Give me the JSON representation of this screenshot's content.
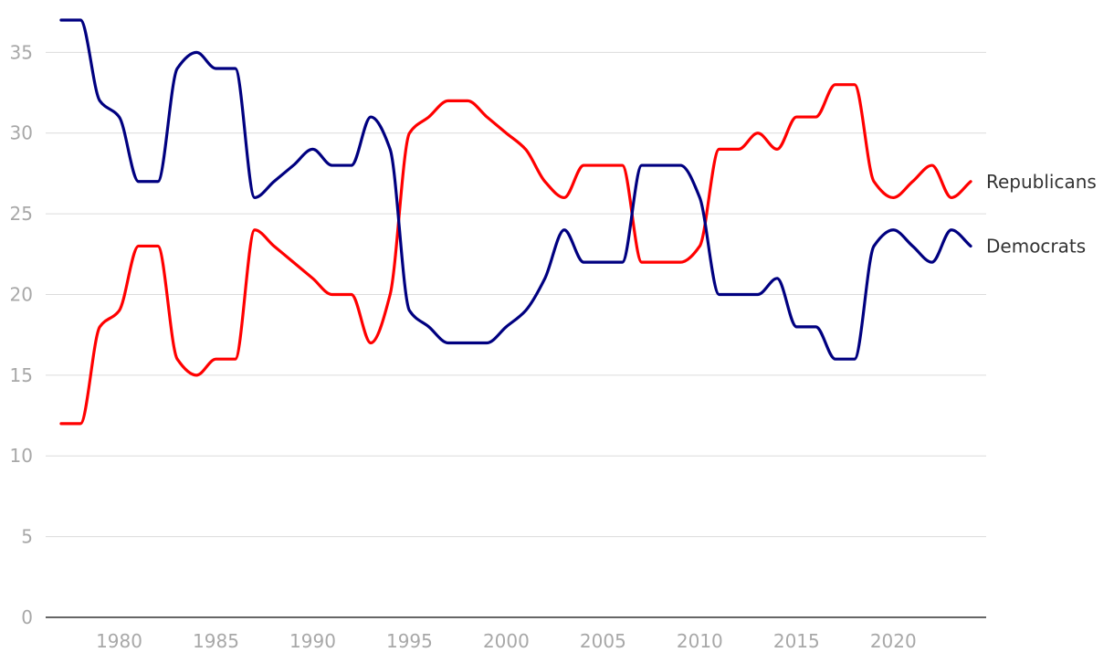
{
  "chart_data": {
    "type": "line",
    "title": "",
    "xlabel": "",
    "ylabel": "",
    "xlim": [
      1977,
      2024
    ],
    "ylim": [
      0,
      37
    ],
    "y_ticks": [
      0,
      5,
      10,
      15,
      20,
      25,
      30,
      35
    ],
    "x_ticks": [
      1980,
      1985,
      1990,
      1995,
      2000,
      2005,
      2010,
      2015,
      2020
    ],
    "grid": true,
    "legend": "end-of-line labels",
    "x": [
      1977,
      1978,
      1979,
      1980,
      1981,
      1982,
      1983,
      1984,
      1985,
      1986,
      1987,
      1988,
      1989,
      1990,
      1991,
      1992,
      1993,
      1994,
      1995,
      1996,
      1997,
      1998,
      1999,
      2000,
      2001,
      2002,
      2003,
      2004,
      2005,
      2006,
      2007,
      2008,
      2009,
      2010,
      2011,
      2012,
      2013,
      2014,
      2015,
      2016,
      2017,
      2018,
      2019,
      2020,
      2021,
      2022,
      2023,
      2024
    ],
    "series": [
      {
        "name": "Republicans",
        "color": "#ff0000",
        "values": [
          12,
          12,
          18,
          19,
          23,
          23,
          16,
          15,
          16,
          16,
          24,
          23,
          22,
          21,
          20,
          20,
          17,
          20,
          30,
          31,
          32,
          32,
          31,
          30,
          29,
          27,
          26,
          28,
          28,
          28,
          22,
          22,
          22,
          23,
          29,
          29,
          30,
          29,
          31,
          31,
          33,
          33,
          27,
          26,
          27,
          28,
          26,
          27
        ]
      },
      {
        "name": "Democrats",
        "color": "#000080",
        "values": [
          37,
          37,
          32,
          31,
          27,
          27,
          34,
          35,
          34,
          34,
          26,
          27,
          28,
          29,
          28,
          28,
          31,
          29,
          19,
          18,
          17,
          17,
          17,
          18,
          19,
          21,
          24,
          22,
          22,
          22,
          28,
          28,
          28,
          26,
          20,
          20,
          20,
          21,
          18,
          18,
          16,
          16,
          23,
          24,
          23,
          22,
          24,
          23
        ]
      }
    ]
  }
}
